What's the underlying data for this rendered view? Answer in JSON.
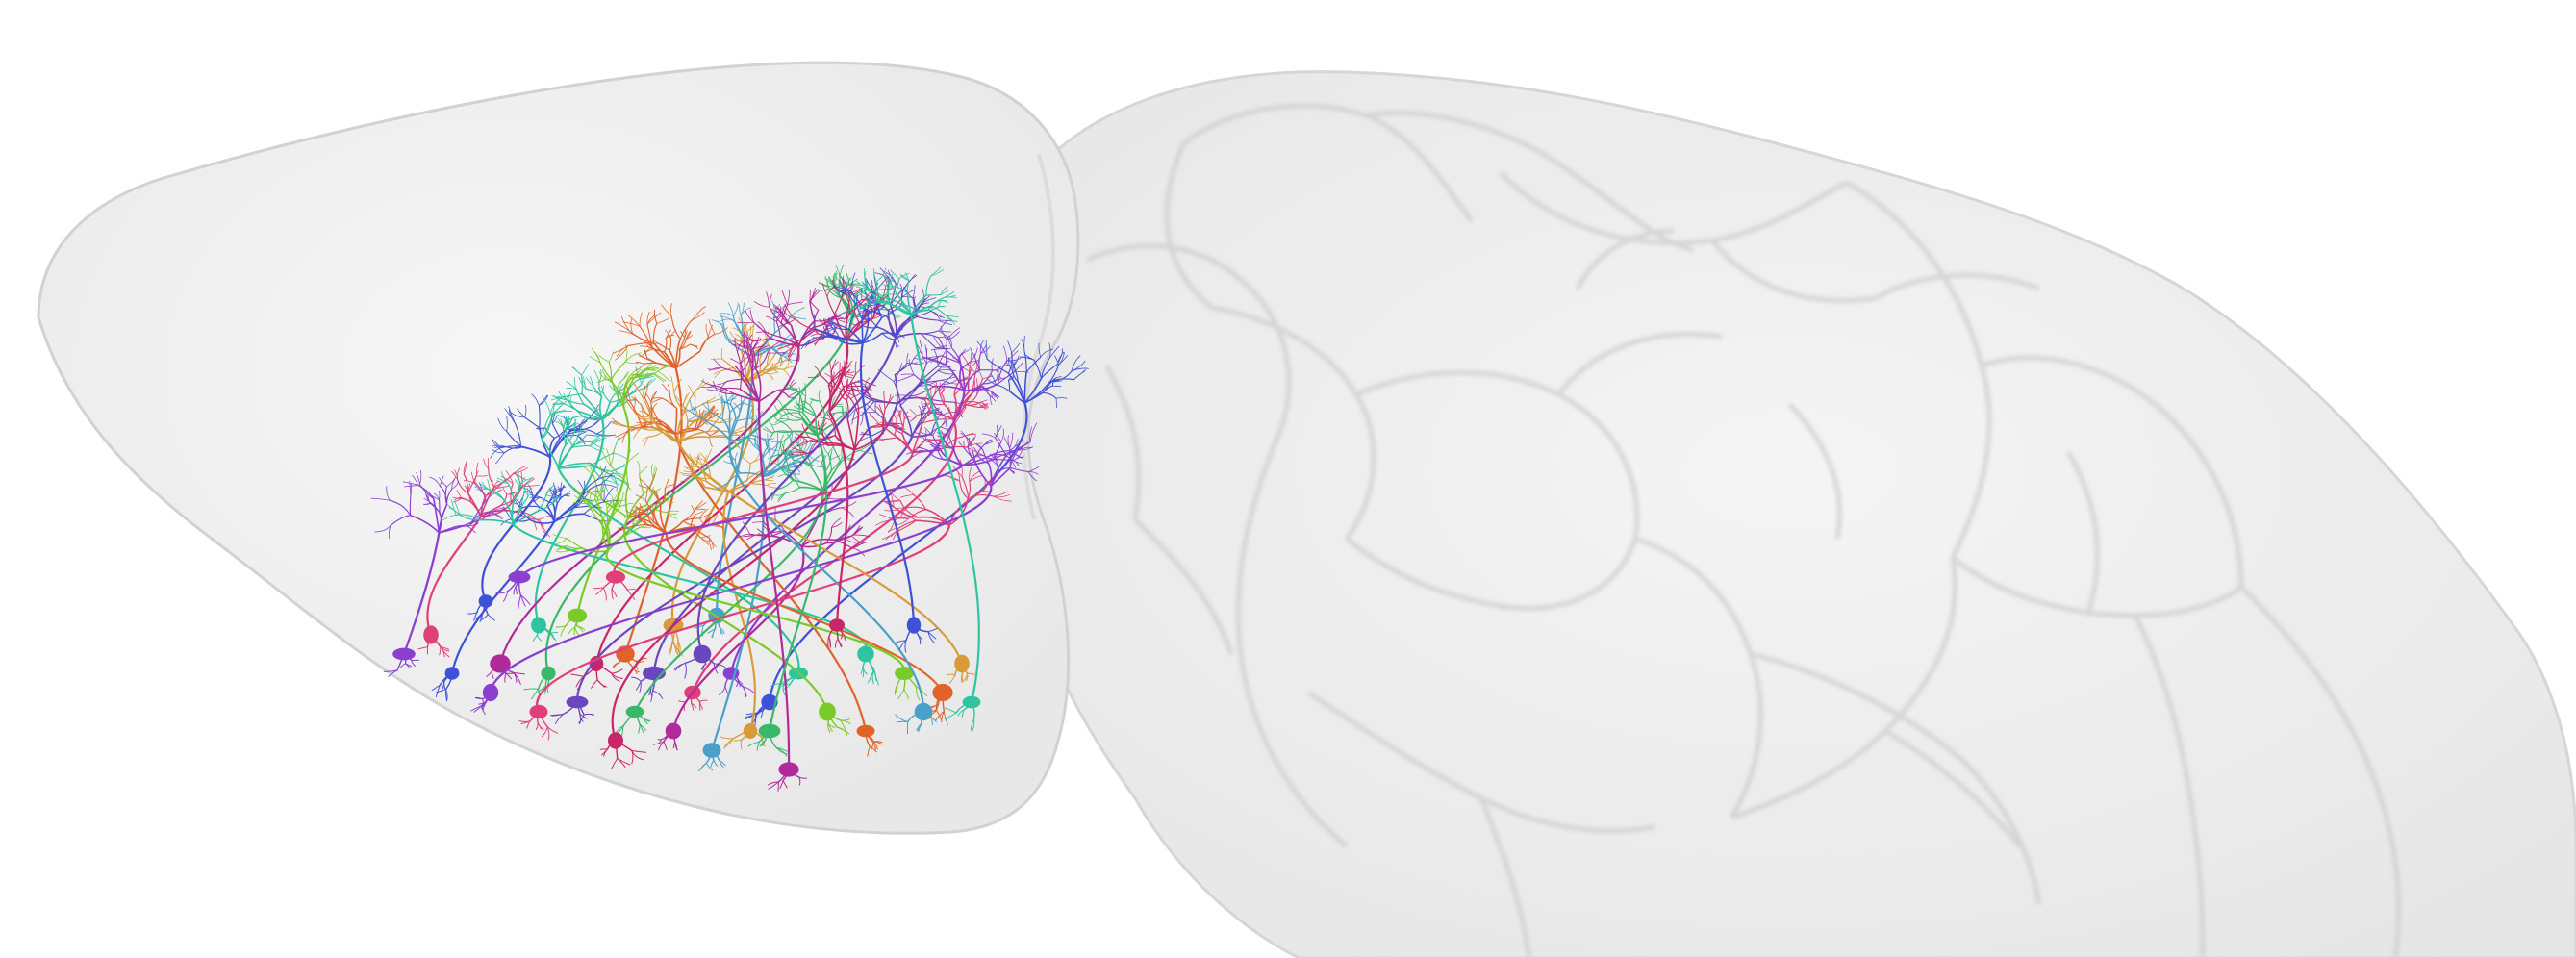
{
  "scene": {
    "background_color": "#ffffff",
    "brain_fill_color": "#efefef",
    "brain_outline_color": "#d6d6d6",
    "region_stroke_color": "#cfcfcf",
    "neuron_palette": [
      "#e0407a",
      "#8a3fd1",
      "#3f51d6",
      "#2ec4a0",
      "#7acb2a",
      "#e0632a",
      "#d89b3a",
      "#4aa0c8",
      "#b02a9a",
      "#39b86a",
      "#c9266a",
      "#6b46c1"
    ]
  }
}
